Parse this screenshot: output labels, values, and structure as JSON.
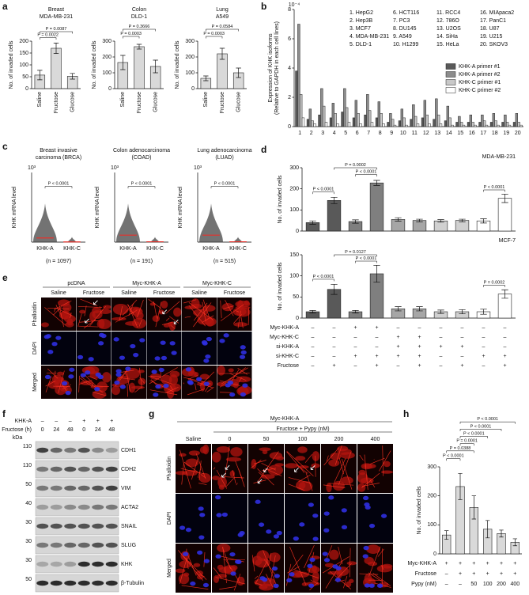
{
  "panel_labels": [
    "a",
    "b",
    "c",
    "d",
    "e",
    "f",
    "g",
    "h"
  ],
  "chart_data": [
    {
      "type": "bar",
      "title": "Breast",
      "subtitle": "MDA-MB-231",
      "y_label": "No. of invaded cells",
      "categories": [
        "Saline",
        "Fructose",
        "Glucose"
      ],
      "values": [
        57,
        170,
        52
      ],
      "errors": [
        20,
        22,
        12
      ],
      "color": "#d9d9d9",
      "ylim": [
        0,
        200
      ],
      "yticks": [
        0,
        50,
        100,
        150,
        200
      ],
      "annotations": [
        "P = 0.0087",
        "P = 0.0022"
      ]
    },
    {
      "type": "bar",
      "title": "Colon",
      "subtitle": "DLD-1",
      "y_label": "No. of invaded cells",
      "categories": [
        "Saline",
        "Fructose",
        "Glucose"
      ],
      "values": [
        165,
        265,
        140
      ],
      "errors": [
        45,
        15,
        40
      ],
      "color": "#d9d9d9",
      "ylim": [
        0,
        300
      ],
      "yticks": [
        0,
        100,
        200,
        300
      ],
      "annotations": [
        "P = 0.3666",
        "P = 0.0003"
      ]
    },
    {
      "type": "bar",
      "title": "Lung",
      "subtitle": "A549",
      "y_label": "No. of invaded cells",
      "categories": [
        "Saline",
        "Fructose",
        "Glucose"
      ],
      "values": [
        65,
        220,
        100
      ],
      "errors": [
        15,
        35,
        30
      ],
      "color": "#d9d9d9",
      "ylim": [
        0,
        300
      ],
      "yticks": [
        0,
        100,
        200,
        300
      ],
      "annotations": [
        "P = 0.0584",
        "P = 0.0003"
      ]
    },
    {
      "type": "grouped_bar",
      "y_label": [
        "Expression of KHK isoforms",
        "(Relative to GAPDH in each cell lines)"
      ],
      "y_scale": "10⁻⁴",
      "categories": [
        "1",
        "2",
        "3",
        "4",
        "5",
        "6",
        "7",
        "8",
        "9",
        "10",
        "11",
        "12",
        "13",
        "14",
        "15",
        "16",
        "17",
        "18",
        "19",
        "20"
      ],
      "series": [
        {
          "name": "KHK-A primer #1",
          "color": "#595959",
          "values": [
            3.8,
            0.5,
            0.8,
            0.6,
            1.0,
            0.6,
            0.8,
            0.6,
            0.3,
            0.4,
            0.5,
            0.6,
            0.5,
            0.4,
            0.3,
            0.3,
            0.3,
            0.3,
            0.3,
            0.3
          ]
        },
        {
          "name": "KHK-A primer #2",
          "color": "#8c8c8c",
          "values": [
            7.0,
            1.2,
            2.6,
            1.6,
            2.6,
            1.8,
            2.2,
            1.7,
            0.9,
            1.2,
            1.5,
            1.8,
            1.9,
            1.4,
            0.7,
            0.8,
            0.8,
            0.9,
            0.8,
            0.9
          ]
        },
        {
          "name": "KHK-C primer #1",
          "color": "#c8c8c8",
          "values": [
            2.2,
            0.4,
            1.4,
            0.9,
            1.3,
            0.9,
            1.1,
            0.9,
            0.5,
            0.6,
            0.7,
            0.8,
            0.8,
            0.6,
            0.3,
            0.3,
            0.4,
            0.4,
            0.3,
            0.3
          ]
        },
        {
          "name": "KHK-C primer #2",
          "color": "#ffffff",
          "values": [
            0.6,
            0.2,
            0.3,
            0.2,
            0.3,
            0.2,
            0.3,
            0.2,
            0.1,
            0.1,
            0.2,
            0.2,
            0.2,
            0.1,
            0.1,
            0.1,
            0.1,
            0.1,
            0.1,
            0.1
          ]
        }
      ],
      "ylim": [
        0,
        8
      ],
      "yticks": [
        0,
        2,
        4,
        6,
        8
      ],
      "legend": "right",
      "key": [
        "1. HepG2",
        "2. Hep3B",
        "3. MCF7",
        "4. MDA-MB-231",
        "5. DLD-1",
        "6. HCT116",
        "7. PC3",
        "8. DU145",
        "9. A549",
        "10. H1299",
        "11. RCC4",
        "12. 786O",
        "13. U2OS",
        "14. SiHa",
        "15. HeLa",
        "16. MIApaca2",
        "17. PanC1",
        "18. U87",
        "19. U215",
        "20. SKOV3"
      ]
    },
    {
      "type": "strip",
      "title": "Breast invasive",
      "subtitle": "carcinoma (BRCA)",
      "y_label": "KHK mRNA level",
      "y_scale": "10³",
      "categories": [
        "KHK-A",
        "KHK-C"
      ],
      "values": [
        0.12,
        0.005
      ],
      "color": "#e8302a",
      "ylim": [
        0,
        2
      ],
      "note": "(n = 1097)",
      "annotations": [
        "P < 0.0001"
      ]
    },
    {
      "type": "strip",
      "title": "Colon adenocarcinoma",
      "subtitle": "(COAD)",
      "y_label": "KHK mRNA level",
      "y_scale": "10³",
      "categories": [
        "KHK-A",
        "KHK-C"
      ],
      "values": [
        0.1,
        0.005
      ],
      "color": "#e8302a",
      "ylim": [
        0,
        1
      ],
      "note": "(n = 191)",
      "annotations": [
        "P < 0.0001"
      ]
    },
    {
      "type": "strip",
      "title": "Lung adenocarcinoma",
      "subtitle": "(LUAD)",
      "y_label": "KHK mRNA level",
      "y_scale": "10³",
      "categories": [
        "KHK-A",
        "KHK-C"
      ],
      "values": [
        0.1,
        0.005
      ],
      "color": "#e8302a",
      "ylim": [
        0,
        1
      ],
      "note": "(n = 515)",
      "annotations": [
        "P < 0.0001"
      ]
    },
    {
      "type": "bar",
      "title": "MDA-MB-231",
      "y_label": "No. of invaded cells",
      "values": [
        40,
        145,
        45,
        228,
        55,
        50,
        48,
        50,
        48,
        155
      ],
      "errors": [
        8,
        15,
        8,
        12,
        8,
        6,
        6,
        6,
        10,
        20
      ],
      "colors": [
        "#595959",
        "#595959",
        "#7f7f7f",
        "#7f7f7f",
        "#a6a6a6",
        "#a6a6a6",
        "#d0d0d0",
        "#d0d0d0",
        "#ffffff",
        "#ffffff"
      ],
      "ylim": [
        0,
        300
      ],
      "yticks": [
        0,
        100,
        200,
        300
      ],
      "annotations": [
        "P < 0.0001",
        "P = 0.0002",
        "P < 0.0001",
        "P < 0.0001"
      ]
    },
    {
      "type": "bar",
      "title": "MCF-7",
      "y_label": "No. of invaded cells",
      "values": [
        15,
        68,
        15,
        105,
        22,
        22,
        15,
        15,
        15,
        57
      ],
      "errors": [
        3,
        12,
        3,
        20,
        5,
        5,
        4,
        5,
        6,
        10
      ],
      "colors": [
        "#595959",
        "#595959",
        "#7f7f7f",
        "#7f7f7f",
        "#a6a6a6",
        "#a6a6a6",
        "#d0d0d0",
        "#d0d0d0",
        "#ffffff",
        "#ffffff"
      ],
      "ylim": [
        0,
        150
      ],
      "yticks": [
        0,
        50,
        100,
        150
      ],
      "annotations": [
        "P < 0.0001",
        "P = 0.0127",
        "P < 0.0001",
        "P = 0.0002"
      ],
      "conditions": [
        {
          "label": "Myc-KHK-A",
          "values": [
            "–",
            "–",
            "+",
            "+",
            "–",
            "–",
            "–",
            "–",
            "–",
            "–"
          ]
        },
        {
          "label": "Myc-KHK-C",
          "values": [
            "–",
            "–",
            "–",
            "–",
            "+",
            "+",
            "–",
            "–",
            "–",
            "–"
          ]
        },
        {
          "label": "si-KHK-A",
          "values": [
            "–",
            "–",
            "–",
            "–",
            "+",
            "+",
            "+",
            "+",
            "–",
            "–"
          ]
        },
        {
          "label": "si-KHK-C",
          "values": [
            "–",
            "–",
            "+",
            "+",
            "+",
            "+",
            "–",
            "–",
            "+",
            "+"
          ]
        },
        {
          "label": "Fructose",
          "values": [
            "–",
            "+",
            "–",
            "+",
            "–",
            "+",
            "–",
            "+",
            "–",
            "+"
          ]
        }
      ]
    },
    {
      "type": "bar",
      "y_label": "No. of invaded cells",
      "values": [
        65,
        232,
        160,
        85,
        70,
        40
      ],
      "errors": [
        15,
        45,
        40,
        30,
        12,
        12
      ],
      "color": "#d9d9d9",
      "ylim": [
        0,
        300
      ],
      "yticks": [
        0,
        100,
        200,
        300
      ],
      "annotations": [
        "P < 0.0001",
        "P < 0.0001",
        "P < 0.0001",
        "P = 0.0001",
        "P = 0.0388",
        "P < 0.0001"
      ],
      "conditions": [
        {
          "label": "Myc-KHK-A",
          "values": [
            "+",
            "+",
            "+",
            "+",
            "+",
            "+"
          ]
        },
        {
          "label": "Fructose",
          "values": [
            "–",
            "+",
            "+",
            "+",
            "+",
            "+"
          ]
        },
        {
          "label": "Pypy (nM)",
          "values": [
            "–",
            "–",
            "50",
            "100",
            "200",
            "400"
          ]
        }
      ]
    }
  ],
  "panel_e": {
    "groups": [
      "pcDNA",
      "Myc-KHK-A",
      "Myc-KHK-C"
    ],
    "conditions": [
      "Saline",
      "Fructose",
      "Saline",
      "Fructose",
      "Saline",
      "Fructose"
    ],
    "rows": [
      "Phalloidin",
      "DAPI",
      "Merged"
    ]
  },
  "panel_f": {
    "khk_a_label": "KHK-A",
    "khk_a": [
      "–",
      "–",
      "–",
      "+",
      "+",
      "+"
    ],
    "fructose_label": "Fructose (h)",
    "fructose": [
      0,
      24,
      48,
      0,
      24,
      48
    ],
    "kda_label": "kDa",
    "bands": [
      {
        "name": "CDH1",
        "kda": 110
      },
      {
        "name": "CDH2",
        "kda": 110
      },
      {
        "name": "VIM",
        "kda": 50
      },
      {
        "name": "ACTA2",
        "kda": 40
      },
      {
        "name": "SNAIL",
        "kda": 30
      },
      {
        "name": "SLUG",
        "kda": 30
      },
      {
        "name": "KHK",
        "kda": 30
      },
      {
        "name": "β-Tubulin",
        "kda": 50
      }
    ]
  },
  "panel_g": {
    "group": "Myc-KHK-A",
    "treatment": "Fructose + Pypy (nM)",
    "columns": [
      "Saline",
      "0",
      "50",
      "100",
      "200",
      "400"
    ],
    "rows": [
      "Phalloidin",
      "DAPI",
      "Merged"
    ]
  }
}
